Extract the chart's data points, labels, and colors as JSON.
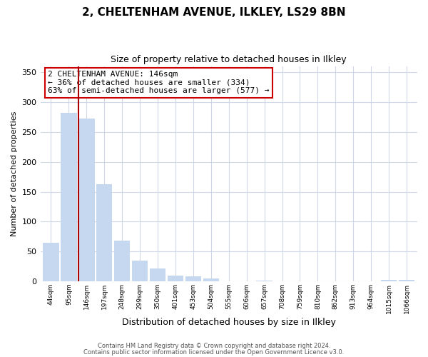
{
  "title": "2, CHELTENHAM AVENUE, ILKLEY, LS29 8BN",
  "subtitle": "Size of property relative to detached houses in Ilkley",
  "bar_labels": [
    "44sqm",
    "95sqm",
    "146sqm",
    "197sqm",
    "248sqm",
    "299sqm",
    "350sqm",
    "401sqm",
    "453sqm",
    "504sqm",
    "555sqm",
    "606sqm",
    "657sqm",
    "708sqm",
    "759sqm",
    "810sqm",
    "862sqm",
    "913sqm",
    "964sqm",
    "1015sqm",
    "1066sqm"
  ],
  "bar_values": [
    65,
    282,
    273,
    163,
    68,
    35,
    21,
    10,
    8,
    5,
    0,
    0,
    1,
    0,
    0,
    0,
    0,
    0,
    0,
    2,
    2
  ],
  "bar_color": "#c5d8f0",
  "highlight_index": 2,
  "highlight_color": "#aa0000",
  "ylabel": "Number of detached properties",
  "xlabel": "Distribution of detached houses by size in Ilkley",
  "ylim": [
    0,
    360
  ],
  "yticks": [
    0,
    50,
    100,
    150,
    200,
    250,
    300,
    350
  ],
  "annotation_title": "2 CHELTENHAM AVENUE: 146sqm",
  "annotation_line1": "← 36% of detached houses are smaller (334)",
  "annotation_line2": "63% of semi-detached houses are larger (577) →",
  "annotation_box_facecolor": "#ffffff",
  "annotation_box_edgecolor": "#cc0000",
  "footer_line1": "Contains HM Land Registry data © Crown copyright and database right 2024.",
  "footer_line2": "Contains public sector information licensed under the Open Government Licence v3.0.",
  "background_color": "#ffffff",
  "grid_color": "#d0d8e8"
}
